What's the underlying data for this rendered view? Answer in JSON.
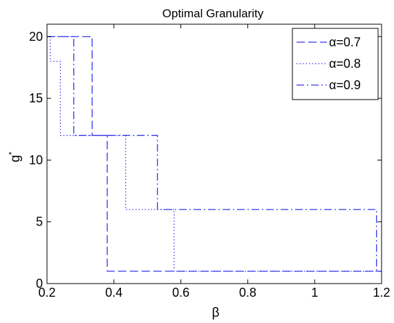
{
  "chart_data": {
    "type": "line",
    "title": "Optimal Granularity",
    "xlabel": "β",
    "ylabel": "g*",
    "ylabel_base": "g",
    "ylabel_sup": "*",
    "xlim": [
      0.2,
      1.2
    ],
    "ylim": [
      0,
      21
    ],
    "xticks": [
      0.2,
      0.4,
      0.6,
      0.8,
      1,
      1.2
    ],
    "xtick_labels": [
      "0.2",
      "0.4",
      "0.6",
      "0.8",
      "1",
      "1.2"
    ],
    "yticks": [
      0,
      5,
      10,
      15,
      20
    ],
    "ytick_labels": [
      "0",
      "5",
      "10",
      "15",
      "20"
    ],
    "grid": false,
    "legend_position": "top-right",
    "line_color": "#3333ee",
    "series": [
      {
        "name": "α=0.7",
        "style": "dashed",
        "points": [
          [
            0.2,
            20
          ],
          [
            0.335,
            20
          ],
          [
            0.335,
            12
          ],
          [
            0.38,
            12
          ],
          [
            0.38,
            1
          ],
          [
            1.2,
            1
          ]
        ]
      },
      {
        "name": "α=0.8",
        "style": "dotted",
        "points": [
          [
            0.2,
            20
          ],
          [
            0.21,
            20
          ],
          [
            0.21,
            18
          ],
          [
            0.24,
            18
          ],
          [
            0.24,
            12
          ],
          [
            0.435,
            12
          ],
          [
            0.435,
            6
          ],
          [
            0.58,
            6
          ],
          [
            0.58,
            1
          ],
          [
            1.2,
            1
          ]
        ]
      },
      {
        "name": "α=0.9",
        "style": "dashdot",
        "points": [
          [
            0.2,
            20
          ],
          [
            0.28,
            20
          ],
          [
            0.28,
            12
          ],
          [
            0.53,
            12
          ],
          [
            0.53,
            6
          ],
          [
            1.185,
            6
          ],
          [
            1.185,
            1
          ],
          [
            1.2,
            1
          ]
        ]
      }
    ]
  }
}
